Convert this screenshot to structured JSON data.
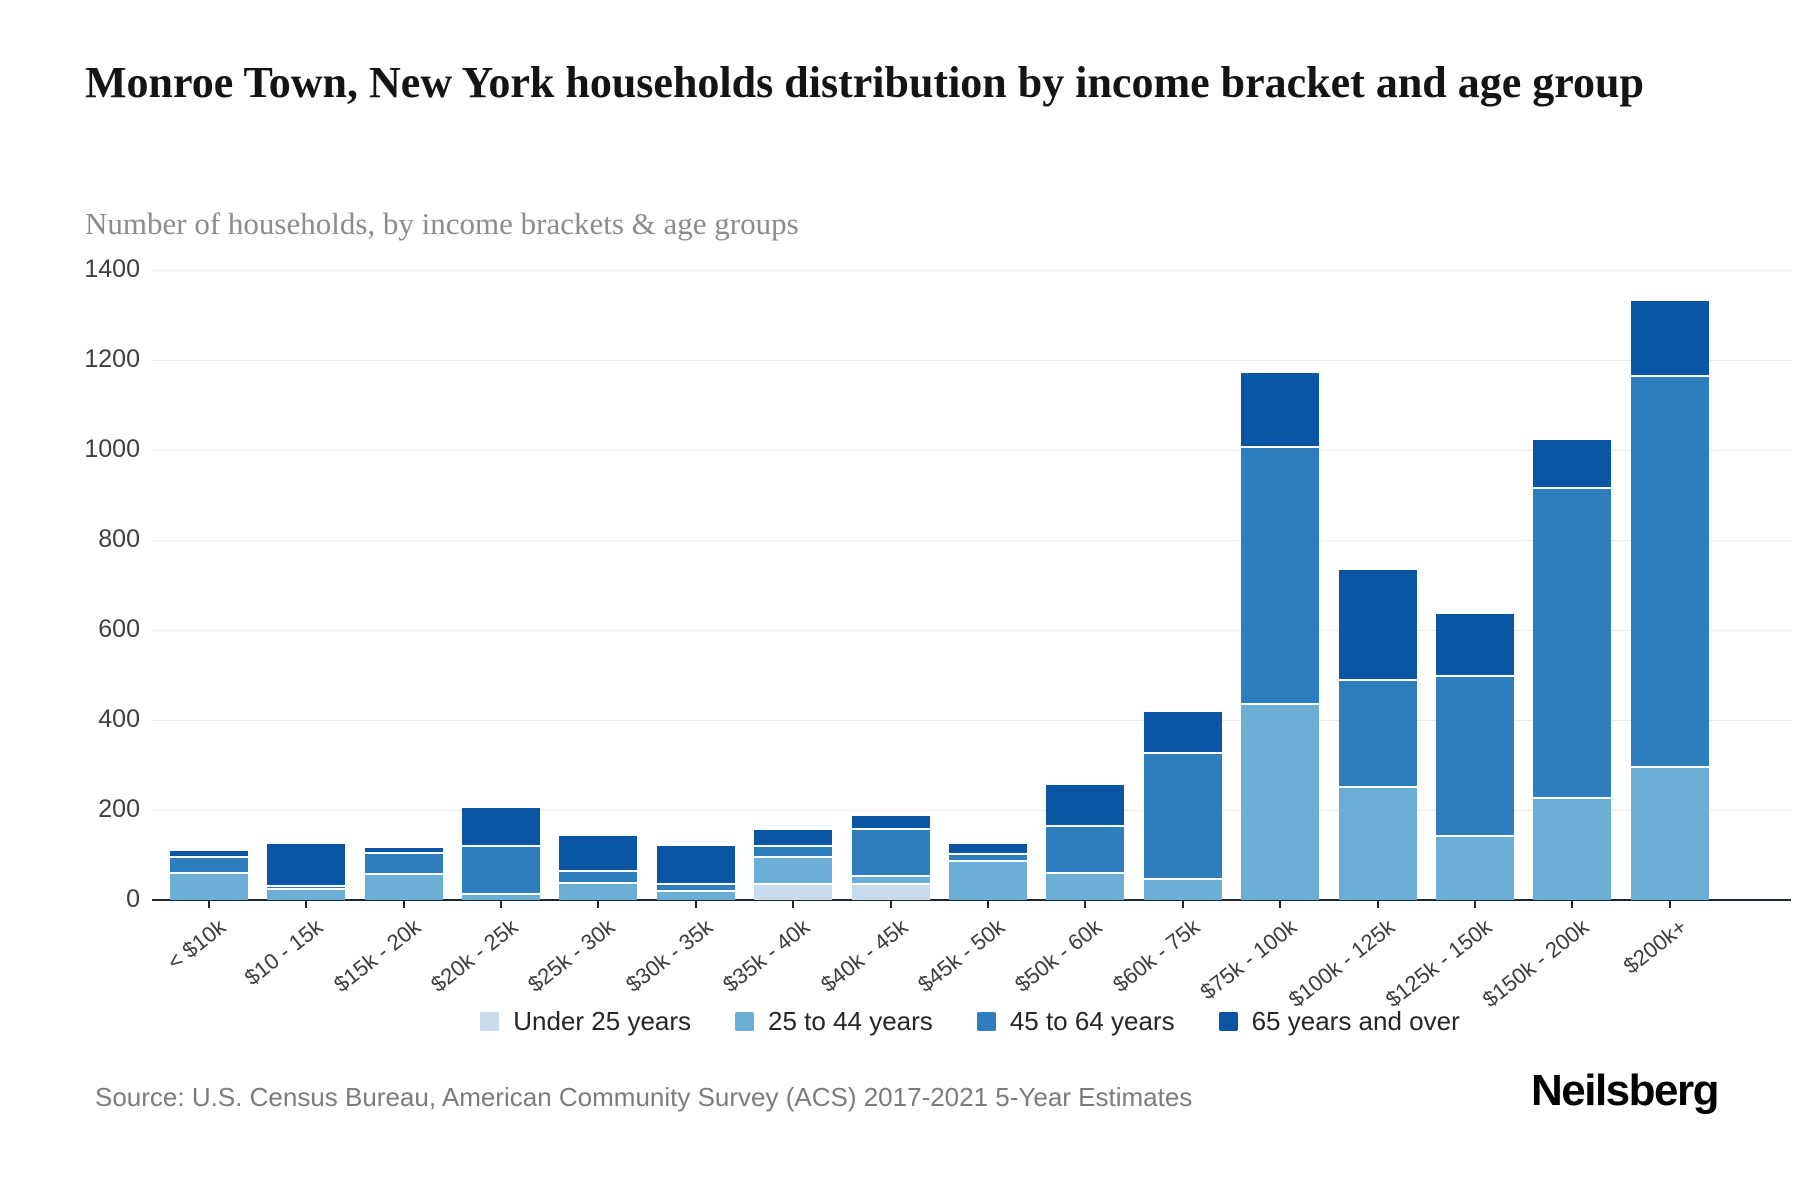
{
  "header": {
    "title": "Monroe Town, New York households distribution by income bracket and age group",
    "subtitle": "Number of households, by income brackets & age groups"
  },
  "footer": {
    "source": "Source: U.S. Census Bureau, American Community Survey (ACS) 2017-2021 5-Year Estimates",
    "brand": "Neilsberg"
  },
  "chart_data": {
    "type": "bar",
    "stacked": true,
    "title": "Monroe Town, New York households distribution by income bracket and age group",
    "subtitle": "Number of households, by income brackets & age groups",
    "xlabel": "",
    "ylabel": "Number of households",
    "ylim": [
      0,
      1400
    ],
    "yticks": [
      0,
      200,
      400,
      600,
      800,
      1000,
      1200,
      1400
    ],
    "grid": true,
    "legend_position": "bottom",
    "categories": [
      "< $10k",
      "$10 - 15k",
      "$15k - 20k",
      "$20k - 25k",
      "$25k - 30k",
      "$30k - 35k",
      "$35k - 40k",
      "$40k - 45k",
      "$45k - 50k",
      "$50k - 60k",
      "$60k - 75k",
      "$75k - 100k",
      "$100k - 125k",
      "$125k - 150k",
      "$150k - 200k",
      "$200k+"
    ],
    "series": [
      {
        "name": "Under 25 years",
        "color": "#c7dbec",
        "values": [
          0,
          0,
          0,
          0,
          0,
          0,
          37,
          38,
          0,
          0,
          0,
          0,
          0,
          0,
          0,
          0
        ]
      },
      {
        "name": "25 to 44 years",
        "color": "#6aaed6",
        "values": [
          63,
          27,
          60,
          15,
          40,
          22,
          60,
          18,
          89,
          63,
          49,
          438,
          253,
          144,
          229,
          298
        ]
      },
      {
        "name": "45 to 64 years",
        "color": "#2e7dbc",
        "values": [
          35,
          7,
          47,
          107,
          27,
          16,
          25,
          104,
          15,
          104,
          281,
          571,
          238,
          356,
          689,
          869
        ]
      },
      {
        "name": "65 years and over",
        "color": "#0b56a4",
        "values": [
          10,
          90,
          9,
          82,
          76,
          81,
          34,
          27,
          20,
          89,
          87,
          163,
          242,
          135,
          104,
          164
        ]
      }
    ],
    "totals": [
      108,
      124,
      116,
      204,
      143,
      119,
      156,
      187,
      124,
      256,
      417,
      1172,
      733,
      635,
      1022,
      1331
    ]
  }
}
